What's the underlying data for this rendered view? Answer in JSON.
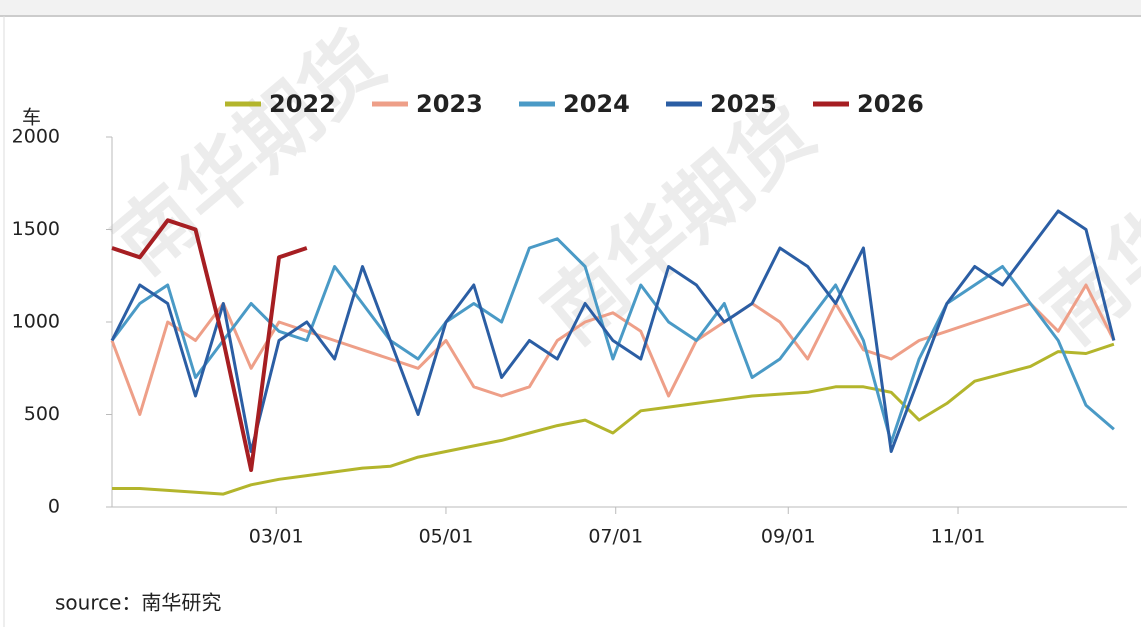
{
  "chart_data": {
    "type": "line",
    "y_label": "车",
    "source": "source：南华研究",
    "watermark": "南华期货",
    "x": [
      1,
      11,
      21,
      31,
      41,
      51,
      61,
      71,
      81,
      91,
      101,
      111,
      121,
      131,
      141,
      151,
      161,
      171,
      181,
      191,
      201,
      211,
      221,
      231,
      241,
      251,
      261,
      271,
      281,
      291,
      301,
      311,
      321,
      331,
      341,
      351,
      361
    ],
    "xlim": [
      1,
      365
    ],
    "xticks": [
      {
        "value": 60,
        "label": "03/01"
      },
      {
        "value": 121,
        "label": "05/01"
      },
      {
        "value": 182,
        "label": "07/01"
      },
      {
        "value": 244,
        "label": "09/01"
      },
      {
        "value": 305,
        "label": "11/01"
      }
    ],
    "ylim": [
      0,
      2000
    ],
    "yticks": [
      0,
      500,
      1000,
      1500,
      2000
    ],
    "grid": false,
    "legend": "top",
    "series": [
      {
        "name": "2022",
        "color": "#b3b52c",
        "values": [
          100,
          100,
          90,
          80,
          70,
          120,
          150,
          170,
          190,
          210,
          220,
          270,
          300,
          330,
          360,
          400,
          440,
          470,
          400,
          520,
          540,
          560,
          580,
          600,
          610,
          620,
          650,
          650,
          620,
          470,
          560,
          680,
          720,
          760,
          840,
          830,
          880
        ]
      },
      {
        "name": "2023",
        "color": "#ee9f88",
        "values": [
          900,
          500,
          1000,
          900,
          1100,
          750,
          1000,
          950,
          900,
          850,
          800,
          750,
          900,
          650,
          600,
          650,
          900,
          1000,
          1050,
          950,
          600,
          900,
          1000,
          1100,
          1000,
          800,
          1100,
          850,
          800,
          900,
          950,
          1000,
          1050,
          1100,
          950,
          1200,
          900
        ]
      },
      {
        "name": "2024",
        "color": "#4a9ac6",
        "values": [
          900,
          1100,
          1200,
          700,
          900,
          1100,
          950,
          900,
          1300,
          1100,
          900,
          800,
          1000,
          1100,
          1000,
          1400,
          1450,
          1300,
          800,
          1200,
          1000,
          900,
          1100,
          700,
          800,
          1000,
          1200,
          900,
          350,
          800,
          1100,
          1200,
          1300,
          1100,
          900,
          550,
          420
        ]
      },
      {
        "name": "2025",
        "color": "#2b5ea4",
        "values": [
          900,
          1200,
          1100,
          600,
          1100,
          300,
          900,
          1000,
          800,
          1300,
          900,
          500,
          1000,
          1200,
          700,
          900,
          800,
          1100,
          900,
          800,
          1300,
          1200,
          1000,
          1100,
          1400,
          1300,
          1100,
          1400,
          300,
          700,
          1100,
          1300,
          1200,
          1400,
          1600,
          1500,
          900
        ]
      },
      {
        "name": "2026",
        "color": "#a61e22",
        "values": [
          1400,
          1350,
          1550,
          1500,
          900,
          200,
          1350,
          1400,
          null,
          null,
          null,
          null,
          null,
          null,
          null,
          null,
          null,
          null,
          null,
          null,
          null,
          null,
          null,
          null,
          null,
          null,
          null,
          null,
          null,
          null,
          null,
          null,
          null,
          null,
          null,
          null,
          null
        ]
      }
    ]
  }
}
